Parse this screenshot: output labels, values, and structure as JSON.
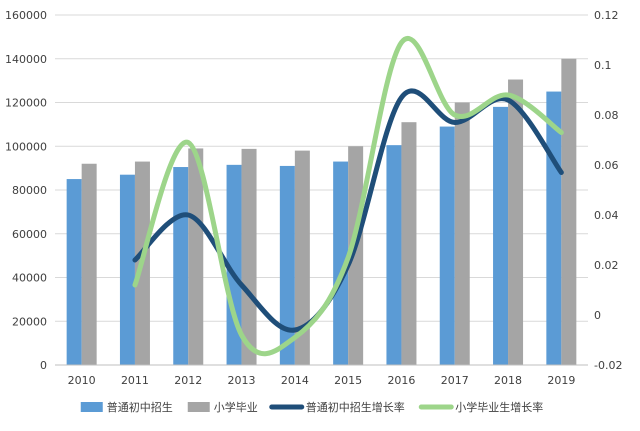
{
  "chart_data": {
    "type": "bar",
    "categories": [
      "2010",
      "2011",
      "2012",
      "2013",
      "2014",
      "2015",
      "2016",
      "2017",
      "2018",
      "2019"
    ],
    "series": [
      {
        "name": "普通初中招生",
        "kind": "bar",
        "axis": "left",
        "color": "#5b9bd5",
        "values": [
          85000,
          87000,
          90500,
          91500,
          91000,
          93000,
          100500,
          109000,
          118000,
          125000
        ]
      },
      {
        "name": "小学毕业",
        "kind": "bar",
        "axis": "left",
        "color": "#a5a5a5",
        "values": [
          92000,
          93000,
          99000,
          98800,
          98000,
          100000,
          111000,
          120000,
          130500,
          140000
        ]
      },
      {
        "name": "普通初中招生增长率",
        "kind": "line",
        "axis": "right",
        "color": "#1f4e79",
        "values": [
          null,
          0.022,
          0.04,
          0.012,
          -0.006,
          0.02,
          0.087,
          0.077,
          0.086,
          0.057
        ]
      },
      {
        "name": "小学毕业生增长率",
        "kind": "line",
        "axis": "right",
        "color": "#9dd58a",
        "values": [
          null,
          0.012,
          0.069,
          -0.008,
          -0.009,
          0.023,
          0.109,
          0.08,
          0.088,
          0.073
        ]
      }
    ],
    "left_axis": {
      "min": 0,
      "max": 160000,
      "ticks": [
        "0",
        "20000",
        "40000",
        "60000",
        "80000",
        "100000",
        "120000",
        "140000",
        "160000"
      ]
    },
    "right_axis": {
      "min": -0.02,
      "max": 0.12,
      "ticks": [
        "-0.02",
        "0",
        "0.02",
        "0.04",
        "0.06",
        "0.08",
        "0.1",
        "0.12"
      ]
    },
    "grid": true,
    "legend_position": "bottom",
    "title": "",
    "xlabel": "",
    "ylabel": ""
  }
}
